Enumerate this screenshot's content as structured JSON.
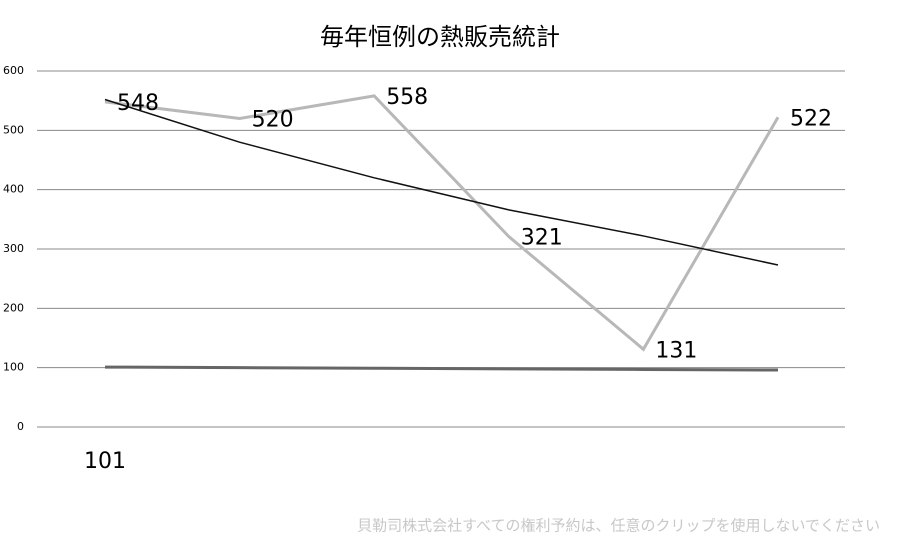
{
  "chart_data": {
    "type": "line",
    "title": "毎年恒例の熱販売統計",
    "categories": [
      "101",
      null,
      null,
      null,
      null,
      null
    ],
    "series": [
      {
        "color": "#b8b8b8",
        "values": [
          548,
          520,
          558,
          321,
          131,
          522
        ],
        "show_labels": true
      },
      {
        "color": "#111111",
        "values": [
          552,
          480,
          420,
          366,
          322,
          273
        ],
        "show_labels": false
      },
      {
        "color": "#666666",
        "values": [
          101,
          100,
          99,
          98,
          97,
          96
        ],
        "show_labels": false
      }
    ],
    "ylim": [
      0,
      600
    ],
    "yticks": [
      0,
      100,
      200,
      300,
      400,
      500,
      600
    ],
    "grid": true,
    "watermark": "貝勒司株式会社すべての権利予約は、任意のクリップを使用しないでください"
  }
}
